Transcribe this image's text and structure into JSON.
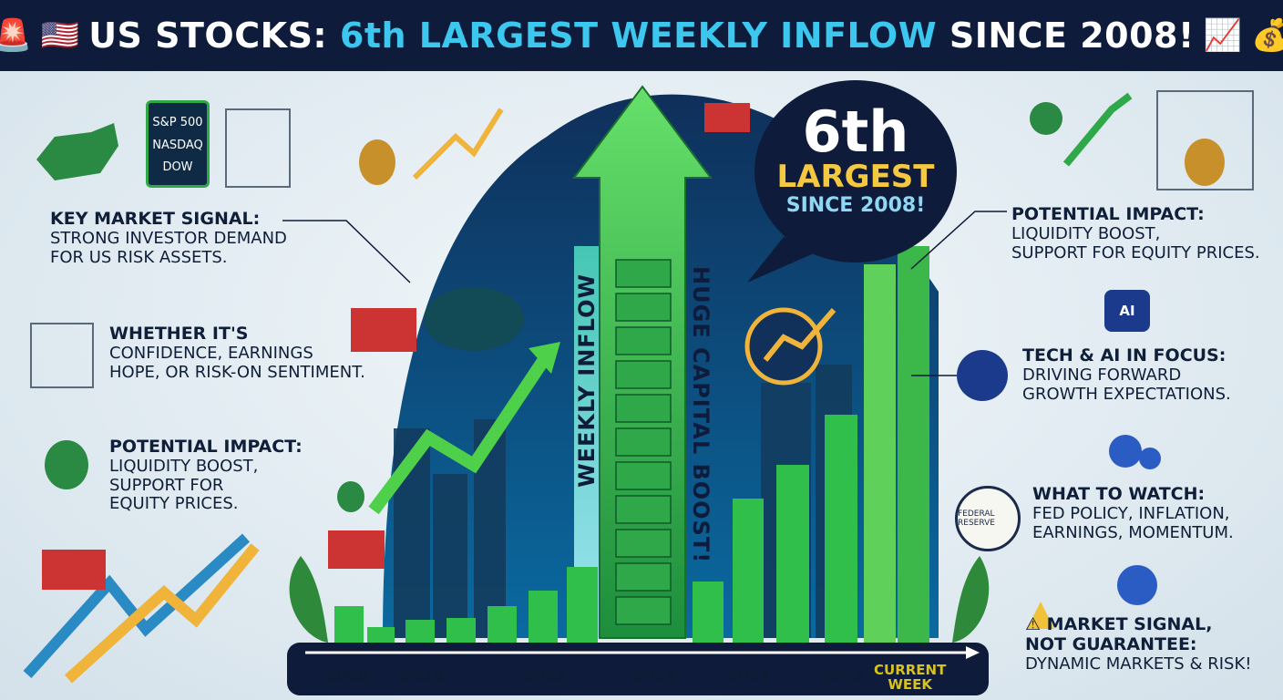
{
  "header": {
    "icon_left_1": "🚨",
    "icon_left_2": "🇺🇸",
    "title_part1": "US STOCKS: ",
    "title_part2": "6th LARGEST WEEKLY INFLOW",
    "title_part3": " SINCE 2008!",
    "icon_right_1": "📈",
    "icon_right_2": "💰"
  },
  "index_panel": {
    "line1": "S&P 500",
    "line2": "NASDAQ",
    "line3": "DOW"
  },
  "left": {
    "key_signal": {
      "heading": "KEY MARKET SIGNAL:",
      "body1": "STRONG INVESTOR DEMAND",
      "body2": "FOR US RISK ASSETS."
    },
    "whether": {
      "heading": "WHETHER IT'S",
      "body1": "CONFIDENCE, EARNINGS",
      "body2": "HOPE, OR RISK-ON SENTIMENT."
    },
    "impact": {
      "heading": "POTENTIAL IMPACT:",
      "body1": "LIQUIDITY BOOST,",
      "body2": "SUPPORT FOR",
      "body3": "EQUITY PRICES."
    }
  },
  "right": {
    "impact": {
      "heading": "POTENTIAL IMPACT:",
      "body1": "LIQUIDITY BOOST,",
      "body2": "SUPPORT FOR EQUITY PRICES."
    },
    "tech": {
      "heading": "TECH & AI IN FOCUS:",
      "body1": "DRIVING FORWARD",
      "body2": "GROWTH EXPECTATIONS."
    },
    "watch": {
      "heading": "WHAT TO WATCH:",
      "body1": "FED POLICY, INFLATION,",
      "body2": "EARNINGS, MOMENTUM."
    },
    "signal": {
      "heading1": "⚠ MARKET SIGNAL,",
      "heading2": "NOT GUARANTEE:",
      "body1": "DYNAMIC MARKETS & RISK!"
    }
  },
  "bubble": {
    "number": "6th",
    "largest": "LARGEST",
    "since": "SINCE 2008!"
  },
  "ai_chip_label": "AI",
  "fed_seal_label": "FEDERAL RESERVE",
  "vertical": {
    "left": "WEEKLY INFLOW",
    "right": "HUGE CAPITAL BOOST!"
  },
  "axis": {
    "labels": [
      "2008",
      "2010",
      "2015",
      "2019",
      "2021",
      "2023"
    ],
    "current1": "CURRENT",
    "current2": "WEEK"
  },
  "colors": {
    "navy": "#0f1b3a",
    "cyan": "#3cc7ef",
    "green": "#2fb84a",
    "gold": "#f5c842"
  }
}
